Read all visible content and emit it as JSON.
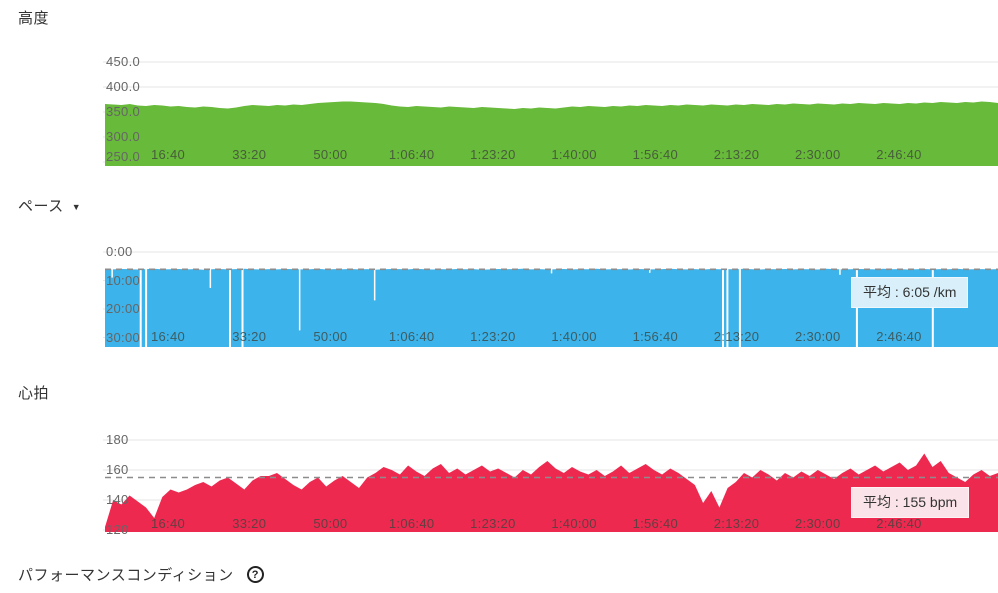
{
  "ui": {
    "dropdown_arrow": "▼",
    "help_glyph": "?"
  },
  "footer": {
    "performance_condition_label": "パフォーマンスコンディション"
  },
  "colors": {
    "altitude_fill": "#68ba3a",
    "pace_fill": "#3cb3ea",
    "heart_rate_fill": "#ee2950",
    "pace_avg_box_bg": "#d9f0fa",
    "hr_avg_box_bg": "#fbe4e9",
    "gridline": "#e6e6e6",
    "avg_dash_line": "#8c8c8c",
    "title_text": "#333333",
    "tick_text": "#666666"
  },
  "chart_data": [
    {
      "id": "altitude",
      "type": "area",
      "title": "高度",
      "color": "#68ba3a",
      "ylabel": "",
      "ylim": [
        250,
        450
      ],
      "y_ticks": [
        "450.0",
        "400.0",
        "350.0",
        "300.0",
        "250.0"
      ],
      "x_ticks": [
        "16:40",
        "33:20",
        "50:00",
        "1:06:40",
        "1:23:20",
        "1:40:00",
        "1:56:40",
        "2:13:20",
        "2:30:00",
        "2:46:40"
      ],
      "grid": true,
      "values_m": [
        366,
        365,
        364,
        366,
        363,
        362,
        364,
        363,
        361,
        362,
        360,
        359,
        361,
        360,
        358,
        357,
        359,
        362,
        364,
        363,
        362,
        364,
        363,
        365,
        364,
        366,
        368,
        369,
        370,
        371,
        371,
        370,
        369,
        368,
        366,
        363,
        361,
        360,
        362,
        361,
        360,
        359,
        361,
        360,
        359,
        358,
        360,
        359,
        358,
        357,
        356,
        358,
        357,
        359,
        358,
        357,
        359,
        361,
        360,
        362,
        361,
        360,
        362,
        361,
        363,
        362,
        364,
        363,
        362,
        364,
        363,
        365,
        364,
        363,
        365,
        364,
        363,
        365,
        364,
        366,
        365,
        364,
        366,
        365,
        367,
        366,
        365,
        367,
        366,
        365,
        367,
        366,
        368,
        367,
        366,
        368,
        367,
        366,
        368,
        367,
        369,
        368,
        370,
        369,
        368,
        370,
        369,
        371,
        370,
        368
      ]
    },
    {
      "id": "pace",
      "type": "area",
      "title": "ペース",
      "color": "#3cb3ea",
      "ylabel": "",
      "ylim_min_per_km": [
        0,
        30
      ],
      "inverted_axis": true,
      "y_ticks": [
        "0:00",
        "10:00",
        "20:00",
        "30:00"
      ],
      "x_ticks": [
        "16:40",
        "33:20",
        "50:00",
        "1:06:40",
        "1:23:20",
        "1:40:00",
        "1:56:40",
        "2:13:20",
        "2:30:00",
        "2:46:40"
      ],
      "grid": true,
      "average_label": "平均 : 6:05 /km",
      "average_min_per_km": 6.083,
      "values_min_per_km": [
        6.0,
        6.1,
        5.95,
        6.05,
        6.15,
        6.0,
        5.9,
        6.1,
        6.05,
        5.95,
        6.1,
        6.0,
        6.2,
        6.05,
        5.95,
        6.1,
        6.0,
        5.9,
        6.05,
        6.15,
        6.0,
        6.1,
        5.95,
        6.0,
        6.1,
        6.05,
        5.9,
        6.15,
        6.0,
        6.05,
        5.95,
        6.1,
        6.0,
        6.2,
        6.05,
        5.95,
        6.0,
        6.1,
        5.9,
        6.05,
        6.15,
        6.0,
        6.1,
        5.95,
        6.05,
        6.0,
        6.2,
        6.1,
        5.95,
        6.05,
        6.0,
        5.9,
        6.1,
        6.0,
        6.15,
        6.05,
        5.95,
        6.1,
        6.0,
        6.05,
        5.9,
        6.1,
        6.05,
        6.0,
        6.15,
        5.95,
        6.05,
        6.1,
        6.0,
        5.9,
        6.05,
        6.1,
        6.0,
        6.15,
        5.95,
        6.05,
        6.0,
        6.1,
        5.9,
        6.05,
        6.15,
        6.0,
        6.05,
        5.95,
        6.1,
        6.0,
        6.05,
        6.15,
        5.9,
        6.0,
        6.1,
        6.05,
        5.95,
        6.0,
        6.1,
        5.9,
        6.05,
        6.0,
        6.15,
        6.05,
        5.95,
        6.1,
        6.0,
        6.05,
        5.9,
        6.1,
        6.05,
        6.0,
        6.1,
        6.0
      ],
      "pause_gaps_fraction": [
        0.04,
        0.046,
        0.14,
        0.154,
        0.692,
        0.697,
        0.711,
        0.842,
        0.927
      ],
      "slow_dips": [
        {
          "f": 0.008,
          "pace": 9.0
        },
        {
          "f": 0.118,
          "pace": 12.6
        },
        {
          "f": 0.218,
          "pace": 27.5
        },
        {
          "f": 0.302,
          "pace": 17.0
        },
        {
          "f": 0.5,
          "pace": 7.5
        },
        {
          "f": 0.61,
          "pace": 7.3
        },
        {
          "f": 0.823,
          "pace": 8.0
        }
      ]
    },
    {
      "id": "heart_rate",
      "type": "area",
      "title": "心拍",
      "color": "#ee2950",
      "ylabel": "",
      "ylim_bpm": [
        120,
        180
      ],
      "y_ticks": [
        "180",
        "160",
        "140",
        "120"
      ],
      "x_ticks": [
        "16:40",
        "33:20",
        "50:00",
        "1:06:40",
        "1:23:20",
        "1:40:00",
        "1:56:40",
        "2:13:20",
        "2:30:00",
        "2:46:40"
      ],
      "grid": true,
      "average_label": "平均 : 155 bpm",
      "average_bpm": 155,
      "values_bpm": [
        122,
        140,
        137,
        143,
        139,
        135,
        128,
        142,
        147,
        145,
        147,
        150,
        152,
        149,
        153,
        155,
        151,
        147,
        153,
        156,
        156,
        158,
        154,
        150,
        147,
        152,
        155,
        149,
        153,
        156,
        152,
        148,
        155,
        158,
        162,
        160,
        157,
        163,
        159,
        156,
        161,
        164,
        158,
        161,
        157,
        160,
        163,
        159,
        161,
        158,
        155,
        160,
        157,
        162,
        166,
        161,
        158,
        162,
        159,
        157,
        160,
        156,
        159,
        163,
        158,
        161,
        164,
        160,
        157,
        161,
        158,
        154,
        150,
        138,
        146,
        135,
        148,
        152,
        158,
        155,
        160,
        157,
        153,
        158,
        155,
        159,
        156,
        160,
        157,
        154,
        158,
        161,
        157,
        160,
        163,
        159,
        162,
        165,
        160,
        163,
        171,
        162,
        166,
        158,
        155,
        152,
        157,
        160,
        156,
        158
      ]
    }
  ]
}
